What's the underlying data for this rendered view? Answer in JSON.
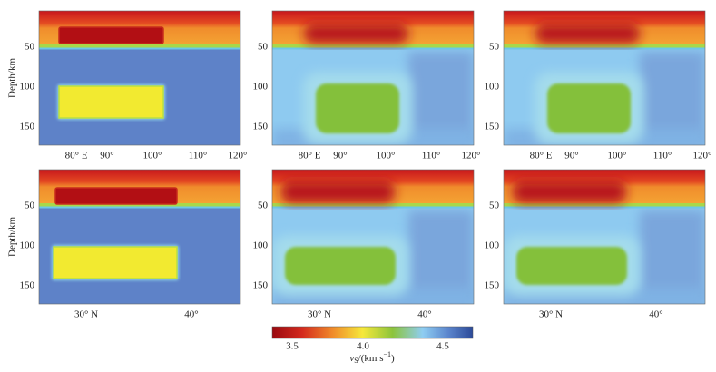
{
  "figure": {
    "y_axis_label": "Depth/km",
    "y_tick_labels": [
      "50",
      "100",
      "150"
    ],
    "top_row_x_tick_labels": [
      "80° E",
      "90°",
      "100°",
      "110°",
      "120°"
    ],
    "bottom_row_x_tick_labels": [
      "30° N",
      "40°"
    ],
    "colorbar": {
      "tick_labels": [
        "3.5",
        "4.0",
        "4.5"
      ],
      "label": {
        "symbol": "v",
        "subscript": "S",
        "unit": "/(km s",
        "exponent": "−1",
        "close": ")"
      }
    }
  }
}
